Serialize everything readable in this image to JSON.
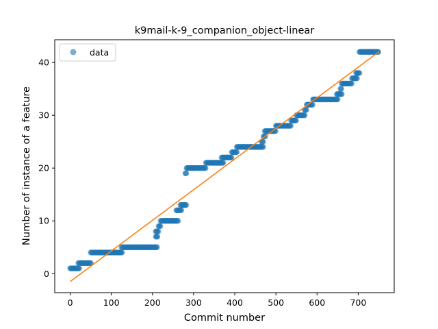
{
  "chart_data": {
    "type": "scatter",
    "title": "k9mail-k-9_companion_object-linear",
    "xlabel": "Commit number",
    "ylabel": "Number of instance of a feature",
    "xlim": [
      -37.5,
      787.5
    ],
    "ylim": [
      -3.6,
      44.3
    ],
    "xticks": [
      0,
      100,
      200,
      300,
      400,
      500,
      600,
      700
    ],
    "yticks": [
      0,
      10,
      20,
      30,
      40
    ],
    "grid": false,
    "legend": {
      "placement": "top-left",
      "entries": [
        "data"
      ]
    },
    "colors": {
      "data": "#1f77b4",
      "fit": "#ff7f0e"
    },
    "steps": [
      {
        "x0": 0,
        "x1": 22,
        "y": 1
      },
      {
        "x0": 20,
        "x1": 50,
        "y": 2
      },
      {
        "x0": 50,
        "x1": 127,
        "y": 4
      },
      {
        "x0": 125,
        "x1": 212,
        "y": 5
      },
      {
        "x0": 208,
        "x1": 212,
        "y": 7
      },
      {
        "x0": 208,
        "x1": 215,
        "y": 8
      },
      {
        "x0": 215,
        "x1": 220,
        "y": 9
      },
      {
        "x0": 220,
        "x1": 263,
        "y": 10
      },
      {
        "x0": 258,
        "x1": 270,
        "y": 12
      },
      {
        "x0": 268,
        "x1": 282,
        "y": 13
      },
      {
        "x0": 280,
        "x1": 283,
        "y": 19
      },
      {
        "x0": 283,
        "x1": 330,
        "y": 20
      },
      {
        "x0": 330,
        "x1": 372,
        "y": 21
      },
      {
        "x0": 368,
        "x1": 393,
        "y": 22
      },
      {
        "x0": 393,
        "x1": 405,
        "y": 23
      },
      {
        "x0": 405,
        "x1": 470,
        "y": 24
      },
      {
        "x0": 465,
        "x1": 470,
        "y": 25
      },
      {
        "x0": 470,
        "x1": 475,
        "y": 26
      },
      {
        "x0": 473,
        "x1": 500,
        "y": 27
      },
      {
        "x0": 500,
        "x1": 537,
        "y": 28
      },
      {
        "x0": 537,
        "x1": 550,
        "y": 29
      },
      {
        "x0": 550,
        "x1": 570,
        "y": 30
      },
      {
        "x0": 570,
        "x1": 575,
        "y": 31
      },
      {
        "x0": 575,
        "x1": 590,
        "y": 32
      },
      {
        "x0": 590,
        "x1": 650,
        "y": 33
      },
      {
        "x0": 648,
        "x1": 660,
        "y": 34
      },
      {
        "x0": 657,
        "x1": 660,
        "y": 35
      },
      {
        "x0": 660,
        "x1": 685,
        "y": 36
      },
      {
        "x0": 685,
        "x1": 698,
        "y": 37
      },
      {
        "x0": 695,
        "x1": 703,
        "y": 38
      },
      {
        "x0": 703,
        "x1": 750,
        "y": 42
      }
    ],
    "fit_line": {
      "x": [
        0,
        750
      ],
      "y": [
        -1.5,
        42
      ]
    }
  }
}
